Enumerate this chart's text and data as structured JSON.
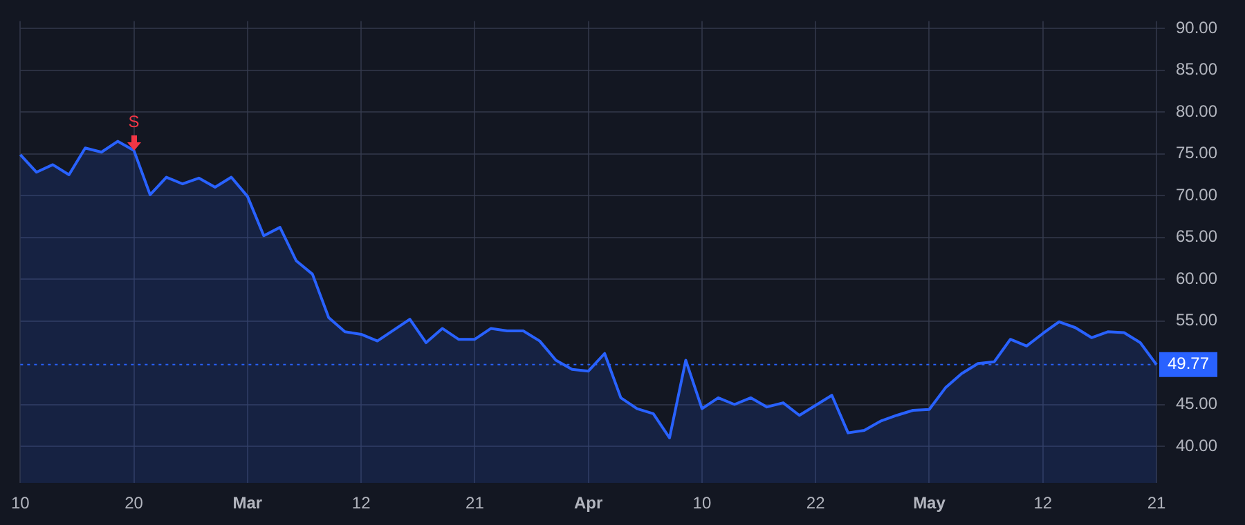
{
  "chart_data": {
    "type": "area",
    "categories": [
      "10",
      null,
      null,
      null,
      null,
      null,
      null,
      "20",
      null,
      null,
      null,
      null,
      null,
      null,
      "Mar",
      null,
      null,
      null,
      null,
      null,
      null,
      "12",
      null,
      null,
      null,
      null,
      null,
      null,
      "21",
      null,
      null,
      null,
      null,
      null,
      null,
      "Apr",
      null,
      null,
      null,
      null,
      null,
      null,
      "10",
      null,
      null,
      null,
      null,
      null,
      null,
      "22",
      null,
      null,
      null,
      null,
      null,
      null,
      "May",
      null,
      null,
      null,
      null,
      null,
      null,
      "12",
      null,
      null,
      null,
      null,
      null,
      null,
      "21"
    ],
    "series": [
      {
        "color": "#2962ff",
        "values": [
          74.9,
          72.8,
          73.7,
          72.5,
          75.7,
          75.2,
          76.5,
          75.4,
          70.1,
          72.2,
          71.4,
          72.1,
          71.0,
          72.2,
          69.9,
          65.2,
          66.2,
          62.2,
          60.6,
          55.4,
          53.7,
          53.4,
          52.6,
          53.9,
          55.2,
          52.4,
          54.1,
          52.8,
          52.8,
          54.1,
          53.8,
          53.8,
          52.6,
          50.3,
          49.2,
          49.0,
          51.1,
          45.8,
          44.5,
          43.9,
          41.0,
          50.3,
          44.5,
          45.8,
          45.0,
          45.8,
          44.7,
          45.2,
          43.7,
          44.9,
          46.1,
          41.6,
          41.9,
          43.0,
          43.7,
          44.3,
          44.4,
          47.0,
          48.7,
          49.9,
          50.1,
          52.8,
          52.0,
          53.5,
          54.9,
          54.2,
          53.0,
          53.7,
          53.6,
          52.4,
          49.77
        ]
      }
    ],
    "ylim": [
      35.6,
      90.9
    ],
    "yticks": [
      {
        "value": 40,
        "label": "40.00"
      },
      {
        "value": 45,
        "label": "45.00"
      },
      {
        "value": 55,
        "label": "55.00"
      },
      {
        "value": 60,
        "label": "60.00"
      },
      {
        "value": 65,
        "label": "65.00"
      },
      {
        "value": 70,
        "label": "70.00"
      },
      {
        "value": 75,
        "label": "75.00"
      },
      {
        "value": 80,
        "label": "80.00"
      },
      {
        "value": 85,
        "label": "85.00"
      },
      {
        "value": 90,
        "label": "90.00"
      }
    ],
    "ref_lines": [
      {
        "axis": "y",
        "value": 49.77,
        "label": "49.77",
        "color": "#2962ff",
        "line_style": "dotted"
      }
    ],
    "annotations": [
      {
        "text": "S",
        "x": "20",
        "y": 75.4
      }
    ],
    "grid": true,
    "legend": false,
    "marker": "none",
    "line_style": "solid"
  }
}
